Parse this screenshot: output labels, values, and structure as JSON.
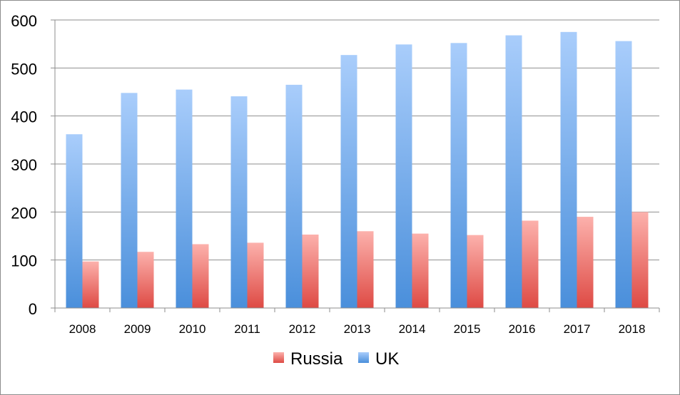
{
  "chart_data": {
    "type": "bar",
    "categories": [
      "2008",
      "2009",
      "2010",
      "2011",
      "2012",
      "2013",
      "2014",
      "2015",
      "2016",
      "2017",
      "2018"
    ],
    "series": [
      {
        "name": "UK",
        "values": [
          362,
          448,
          455,
          441,
          465,
          527,
          549,
          552,
          568,
          575,
          556
        ],
        "color_top": "#a9cdfb",
        "color_bottom": "#4a8fdb"
      },
      {
        "name": "Russia",
        "values": [
          97,
          117,
          133,
          136,
          153,
          160,
          155,
          152,
          182,
          190,
          200
        ],
        "color_top": "#fcb1ac",
        "color_bottom": "#de4a44"
      }
    ],
    "yticks": [
      "0",
      "100",
      "200",
      "300",
      "400",
      "500",
      "600"
    ],
    "ylim": [
      0,
      600
    ],
    "grid": true,
    "legend": {
      "placement": "bottom-center",
      "order": [
        "Russia",
        "UK"
      ]
    }
  }
}
